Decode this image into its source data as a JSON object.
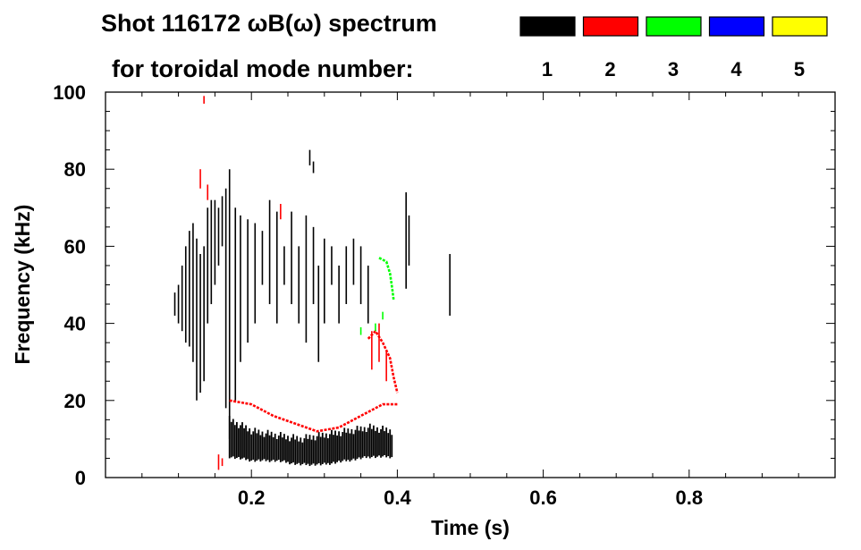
{
  "chart_data": {
    "type": "heatmap",
    "title_line1": "Shot 116172 ωB(ω) spectrum",
    "title_line2": "for toroidal mode number:",
    "xlabel": "Time (s)",
    "ylabel": "Frequency (kHz)",
    "xlim": [
      0.0,
      1.0
    ],
    "ylim": [
      0,
      100
    ],
    "x_ticks": [
      0.2,
      0.4,
      0.6,
      0.8
    ],
    "x_tick_labels": [
      "0.2",
      "0.4",
      "0.6",
      "0.8"
    ],
    "y_ticks": [
      0,
      20,
      40,
      60,
      80,
      100
    ],
    "y_tick_labels": [
      "0",
      "20",
      "40",
      "60",
      "80",
      "100"
    ],
    "grid": false,
    "legend_position": "top-right",
    "legend": [
      {
        "label": "1",
        "color": "#000000"
      },
      {
        "label": "2",
        "color": "#ff0000"
      },
      {
        "label": "3",
        "color": "#00ff00"
      },
      {
        "label": "4",
        "color": "#0000ff"
      },
      {
        "label": "5",
        "color": "#ffff00"
      }
    ],
    "series": [
      {
        "mode": 1,
        "color": "#000000",
        "bands": [
          {
            "x0": 0.17,
            "x1": 0.395,
            "y_lo": [
              5,
              4,
              4,
              3,
              3,
              4,
              5,
              5
            ],
            "y_hi": [
              16,
              13,
              12,
              11,
              12,
              13,
              14,
              13
            ]
          }
        ],
        "segments": [
          [
            0.095,
            42,
            0.095,
            48
          ],
          [
            0.1,
            40,
            0.1,
            50
          ],
          [
            0.105,
            38,
            0.105,
            55
          ],
          [
            0.11,
            35,
            0.11,
            60
          ],
          [
            0.115,
            34,
            0.115,
            64
          ],
          [
            0.12,
            30,
            0.12,
            66
          ],
          [
            0.125,
            20,
            0.125,
            62
          ],
          [
            0.13,
            22,
            0.13,
            58
          ],
          [
            0.135,
            25,
            0.135,
            60
          ],
          [
            0.14,
            40,
            0.14,
            70
          ],
          [
            0.145,
            45,
            0.145,
            72
          ],
          [
            0.15,
            50,
            0.15,
            72
          ],
          [
            0.155,
            55,
            0.155,
            70
          ],
          [
            0.16,
            60,
            0.16,
            73
          ],
          [
            0.165,
            18,
            0.165,
            75
          ],
          [
            0.17,
            10,
            0.17,
            80
          ],
          [
            0.178,
            20,
            0.178,
            70
          ],
          [
            0.185,
            30,
            0.185,
            68
          ],
          [
            0.195,
            35,
            0.195,
            67
          ],
          [
            0.205,
            40,
            0.205,
            66
          ],
          [
            0.215,
            50,
            0.215,
            64
          ],
          [
            0.225,
            45,
            0.225,
            72
          ],
          [
            0.235,
            40,
            0.235,
            69
          ],
          [
            0.245,
            50,
            0.245,
            60
          ],
          [
            0.255,
            45,
            0.255,
            69
          ],
          [
            0.265,
            40,
            0.265,
            60
          ],
          [
            0.275,
            35,
            0.275,
            68
          ],
          [
            0.285,
            45,
            0.285,
            65
          ],
          [
            0.292,
            30,
            0.292,
            55
          ],
          [
            0.3,
            40,
            0.3,
            62
          ],
          [
            0.31,
            50,
            0.31,
            60
          ],
          [
            0.32,
            40,
            0.32,
            55
          ],
          [
            0.33,
            45,
            0.33,
            60
          ],
          [
            0.34,
            50,
            0.34,
            62
          ],
          [
            0.35,
            45,
            0.35,
            60
          ],
          [
            0.36,
            40,
            0.36,
            55
          ],
          [
            0.412,
            49,
            0.412,
            74
          ],
          [
            0.416,
            55,
            0.416,
            68
          ],
          [
            0.472,
            42,
            0.472,
            58
          ],
          [
            0.28,
            81,
            0.28,
            85
          ],
          [
            0.285,
            79,
            0.285,
            82
          ]
        ]
      },
      {
        "mode": 2,
        "color": "#ff0000",
        "lines": [
          {
            "points": [
              [
                0.17,
                20
              ],
              [
                0.2,
                19
              ],
              [
                0.23,
                16
              ],
              [
                0.26,
                14
              ],
              [
                0.29,
                12
              ],
              [
                0.32,
                13
              ],
              [
                0.35,
                16
              ],
              [
                0.38,
                19
              ],
              [
                0.4,
                19
              ]
            ]
          },
          {
            "points": [
              [
                0.36,
                36
              ],
              [
                0.37,
                38
              ],
              [
                0.38,
                35
              ],
              [
                0.39,
                31
              ],
              [
                0.395,
                26
              ],
              [
                0.4,
                22
              ]
            ]
          }
        ],
        "segments": [
          [
            0.135,
            97,
            0.135,
            99
          ],
          [
            0.13,
            75,
            0.13,
            80
          ],
          [
            0.14,
            72,
            0.14,
            76
          ],
          [
            0.24,
            67,
            0.24,
            71
          ],
          [
            0.155,
            2,
            0.155,
            6
          ],
          [
            0.16,
            3,
            0.16,
            5
          ],
          [
            0.365,
            28,
            0.365,
            38
          ],
          [
            0.375,
            30,
            0.375,
            40
          ],
          [
            0.385,
            25,
            0.385,
            33
          ]
        ]
      },
      {
        "mode": 3,
        "color": "#00ff00",
        "lines": [
          {
            "points": [
              [
                0.375,
                57
              ],
              [
                0.385,
                56
              ],
              [
                0.39,
                53
              ],
              [
                0.393,
                49
              ],
              [
                0.395,
                46
              ]
            ]
          }
        ],
        "segments": [
          [
            0.38,
            41,
            0.38,
            43
          ],
          [
            0.35,
            37,
            0.35,
            39
          ],
          [
            0.37,
            38,
            0.37,
            40
          ]
        ]
      }
    ]
  }
}
